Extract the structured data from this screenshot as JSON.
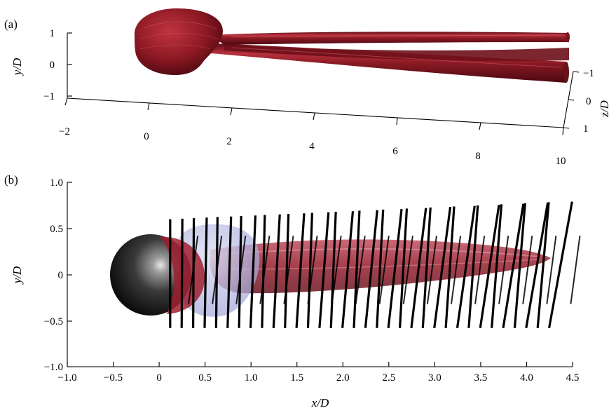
{
  "figure": {
    "panel_a_label": "(a)",
    "panel_b_label": "(b)"
  },
  "chart_data": [
    {
      "type": "other",
      "panel": "(a)",
      "description_kind": "3d-isosurface",
      "axes": {
        "x": {
          "ticks": [
            "−2",
            "0",
            "2",
            "4",
            "6",
            "8",
            "10"
          ],
          "range": [
            -2,
            10
          ]
        },
        "y": {
          "label": "y/D",
          "ticks": [
            "1",
            "0",
            "−1"
          ],
          "range": [
            -1,
            1
          ]
        },
        "z": {
          "label": "z/D",
          "ticks": [
            "−1",
            "0",
            "1"
          ],
          "range": [
            -1,
            1
          ]
        }
      },
      "colors": {
        "surface": "#8b1a22",
        "surface_light": "#c0404a",
        "surface_dark": "#4a0a10"
      }
    },
    {
      "type": "other",
      "panel": "(b)",
      "description_kind": "isosurface-with-rod-markers",
      "axes": {
        "x": {
          "label": "x/D",
          "ticks": [
            "−1.0",
            "−0.5",
            "0",
            "0.5",
            "1.0",
            "1.5",
            "2.0",
            "2.5",
            "3.0",
            "3.5",
            "4.0",
            "4.5"
          ],
          "range": [
            -1.0,
            4.5
          ]
        },
        "y": {
          "label": "y/D",
          "ticks": [
            "1.0",
            "0.5",
            "0",
            "−0.5",
            "−1.0"
          ],
          "range": [
            -1.0,
            1.0
          ]
        }
      },
      "rods": {
        "x_start": 0.12,
        "x_step": 0.125,
        "count": 34,
        "y_bottom": -0.58,
        "y_top_start": 0.6,
        "y_top_end": 0.79,
        "tilt_start": 0.0,
        "tilt_end": 0.25
      },
      "secondary_rods": {
        "x_start": 0.32,
        "x_step": 0.26,
        "count": 17,
        "y_bottom": -0.32,
        "y_top": 0.42,
        "tilt": 0.1
      },
      "colors": {
        "sphere": "#2a2a2a",
        "wake": "#a83040",
        "bubble": "#b0b4e0",
        "rod": "#000000"
      }
    }
  ]
}
